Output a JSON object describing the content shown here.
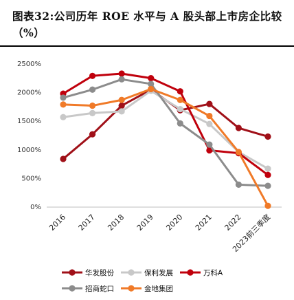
{
  "title": "图表32:公司历年 ROE 水平与 A 股头部上市房企比较（%）",
  "chart_data": {
    "type": "line",
    "categories": [
      "2016",
      "2017",
      "2018",
      "2019",
      "2020",
      "2021",
      "2022",
      "2023前三季度"
    ],
    "ylim": [
      0,
      2500
    ],
    "yticks": [
      "0%",
      "500%",
      "1000%",
      "1500%",
      "2000%",
      "2500%"
    ],
    "ytick_values": [
      0,
      500,
      1000,
      1500,
      2000,
      2500
    ],
    "grid": false,
    "legend_position": "bottom",
    "series": [
      {
        "name": "华发股份",
        "color": "#a01018",
        "values": [
          830,
          1260,
          1760,
          2040,
          1680,
          1790,
          1370,
          1220
        ]
      },
      {
        "name": "保利发展",
        "color": "#c8c8c8",
        "values": [
          1560,
          1630,
          1660,
          2020,
          1700,
          1440,
          950,
          660
        ]
      },
      {
        "name": "万科A",
        "color": "#c0000c",
        "values": [
          1970,
          2280,
          2320,
          2240,
          2010,
          980,
          930,
          550
        ]
      },
      {
        "name": "招商蛇口",
        "color": "#8c8c8c",
        "values": [
          1900,
          2040,
          2220,
          2140,
          1450,
          1080,
          380,
          360
        ]
      },
      {
        "name": "金地集团",
        "color": "#f07a28",
        "values": [
          1780,
          1760,
          1860,
          2050,
          1860,
          1580,
          950,
          10
        ]
      }
    ]
  }
}
